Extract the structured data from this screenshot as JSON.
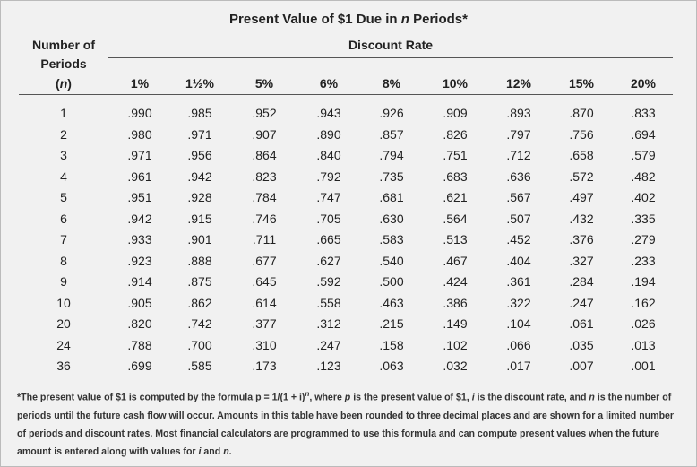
{
  "header": {
    "title": [
      "Present Value of $1 Due in ",
      "n",
      " Periods*"
    ],
    "row_label": [
      "Number of",
      "Periods",
      "(",
      "n",
      ")"
    ],
    "group_label": "Discount Rate"
  },
  "table": {
    "columns": [
      "1%",
      "1½%",
      "5%",
      "6%",
      "8%",
      "10%",
      "12%",
      "15%",
      "20%"
    ],
    "rows": [
      [
        "1",
        ".990",
        ".985",
        ".952",
        ".943",
        ".926",
        ".909",
        ".893",
        ".870",
        ".833"
      ],
      [
        "2",
        ".980",
        ".971",
        ".907",
        ".890",
        ".857",
        ".826",
        ".797",
        ".756",
        ".694"
      ],
      [
        "3",
        ".971",
        ".956",
        ".864",
        ".840",
        ".794",
        ".751",
        ".712",
        ".658",
        ".579"
      ],
      [
        "4",
        ".961",
        ".942",
        ".823",
        ".792",
        ".735",
        ".683",
        ".636",
        ".572",
        ".482"
      ],
      [
        "5",
        ".951",
        ".928",
        ".784",
        ".747",
        ".681",
        ".621",
        ".567",
        ".497",
        ".402"
      ],
      [
        "6",
        ".942",
        ".915",
        ".746",
        ".705",
        ".630",
        ".564",
        ".507",
        ".432",
        ".335"
      ],
      [
        "7",
        ".933",
        ".901",
        ".711",
        ".665",
        ".583",
        ".513",
        ".452",
        ".376",
        ".279"
      ],
      [
        "8",
        ".923",
        ".888",
        ".677",
        ".627",
        ".540",
        ".467",
        ".404",
        ".327",
        ".233"
      ],
      [
        "9",
        ".914",
        ".875",
        ".645",
        ".592",
        ".500",
        ".424",
        ".361",
        ".284",
        ".194"
      ],
      [
        "10",
        ".905",
        ".862",
        ".614",
        ".558",
        ".463",
        ".386",
        ".322",
        ".247",
        ".162"
      ],
      [
        "20",
        ".820",
        ".742",
        ".377",
        ".312",
        ".215",
        ".149",
        ".104",
        ".061",
        ".026"
      ],
      [
        "24",
        ".788",
        ".700",
        ".310",
        ".247",
        ".158",
        ".102",
        ".066",
        ".035",
        ".013"
      ],
      [
        "36",
        ".699",
        ".585",
        ".173",
        ".123",
        ".063",
        ".032",
        ".017",
        ".007",
        ".001"
      ]
    ]
  },
  "footnote": [
    "*The present value of $1 is computed by the formula p = 1/(1 + i)",
    "n",
    ", where ",
    "p",
    " is the present value of $1, ",
    "i",
    " is the discount rate, and ",
    "n",
    " is the number of periods until the future cash flow will occur. Amounts in this table have been rounded to three decimal places and are shown for a limited number of periods and discount rates. Most financial calculators are programmed to use this formula and can compute present values when the future amount is entered along with values for ",
    "i",
    " and ",
    "n",
    "."
  ]
}
